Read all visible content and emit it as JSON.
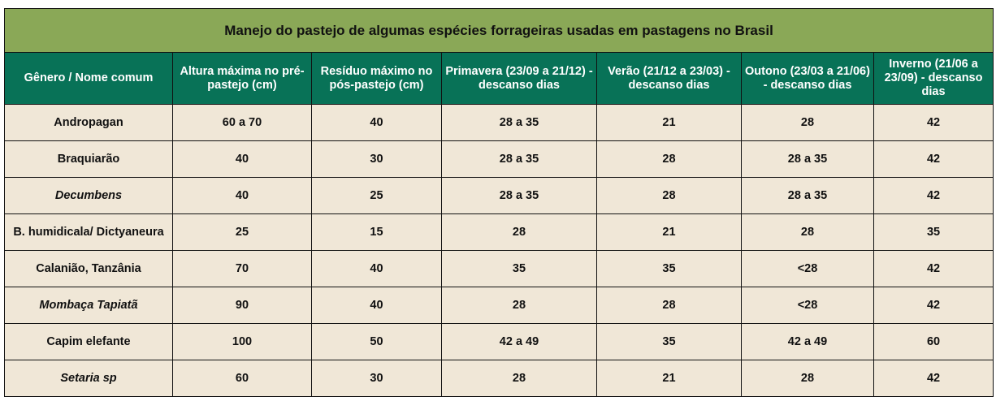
{
  "table": {
    "title": "Manejo do pastejo de algumas espécies forrageiras usadas em pastagens no Brasil",
    "colors": {
      "title_bg": "#8aa857",
      "header_bg": "#087257",
      "body_bg": "#f0e7d7",
      "border": "#111111"
    },
    "headers": [
      "Gênero / Nome comum",
      "Altura máxima no pré-pastejo (cm)",
      "Resíduo máximo no pós-pastejo (cm)",
      "Primavera (23/09 a 21/12) - descanso dias",
      "Verão (21/12 a 23/03) - descanso dias",
      "Outono (23/03 a 21/06) - descanso dias",
      "Inverno (21/06 a 23/09) - descanso dias"
    ],
    "rows": [
      {
        "name": "Andropagan",
        "italic": false,
        "cells": [
          "60 a 70",
          "40",
          "28 a 35",
          "21",
          "28",
          "42"
        ]
      },
      {
        "name": "Braquiarão",
        "italic": false,
        "cells": [
          "40",
          "30",
          "28 a 35",
          "28",
          "28 a 35",
          "42"
        ]
      },
      {
        "name": "Decumbens",
        "italic": true,
        "cells": [
          "40",
          "25",
          "28 a 35",
          "28",
          "28 a 35",
          "42"
        ]
      },
      {
        "name": "B. humidicala/ Dictyaneura",
        "italic": false,
        "cells": [
          "25",
          "15",
          "28",
          "21",
          "28",
          "35"
        ]
      },
      {
        "name": "Calanião, Tanzânia",
        "italic": false,
        "cells": [
          "70",
          "40",
          "35",
          "35",
          "<28",
          "42"
        ]
      },
      {
        "name": "Mombaça Tapiatã",
        "italic": true,
        "cells": [
          "90",
          "40",
          "28",
          "28",
          "<28",
          "42"
        ]
      },
      {
        "name": "Capim elefante",
        "italic": false,
        "cells": [
          "100",
          "50",
          "42 a 49",
          "35",
          "42 a 49",
          "60"
        ]
      },
      {
        "name": "Setaria sp",
        "italic": true,
        "cells": [
          "60",
          "30",
          "28",
          "21",
          "28",
          "42"
        ]
      }
    ]
  }
}
